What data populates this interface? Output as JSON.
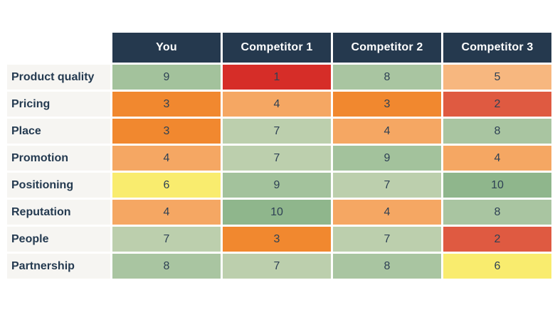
{
  "chart_data": {
    "type": "heatmap",
    "columns": [
      "You",
      "Competitor 1",
      "Competitor 2",
      "Competitor 3"
    ],
    "rows": [
      {
        "label": "Product quality",
        "values": [
          9,
          1,
          8,
          5
        ]
      },
      {
        "label": "Pricing",
        "values": [
          3,
          4,
          3,
          2
        ]
      },
      {
        "label": "Place",
        "values": [
          3,
          7,
          4,
          8
        ]
      },
      {
        "label": "Promotion",
        "values": [
          4,
          7,
          9,
          4
        ]
      },
      {
        "label": "Positioning",
        "values": [
          6,
          9,
          7,
          10
        ]
      },
      {
        "label": "Reputation",
        "values": [
          4,
          10,
          4,
          8
        ]
      },
      {
        "label": "People",
        "values": [
          7,
          3,
          7,
          2
        ]
      },
      {
        "label": "Partnership",
        "values": [
          8,
          7,
          8,
          6
        ]
      }
    ],
    "scale": {
      "min": 1,
      "max": 10,
      "colormap": "red-yellow-green"
    },
    "value_colors": {
      "1": "#d62d28",
      "2": "#df5a41",
      "3": "#f1882f",
      "4": "#f5a763",
      "5": "#f7b77f",
      "6": "#f9ec6e",
      "7": "#bccfad",
      "8": "#a9c5a1",
      "9": "#a3c29c",
      "10": "#8fb68c"
    },
    "colors": {
      "header_bg": "#25394e",
      "header_text": "#ffffff",
      "label_bg": "#f6f5f2",
      "label_text": "#243a50",
      "value_text": "#2e4154",
      "gap": "#ffffff"
    },
    "legend_position": "none",
    "grid": "off"
  }
}
